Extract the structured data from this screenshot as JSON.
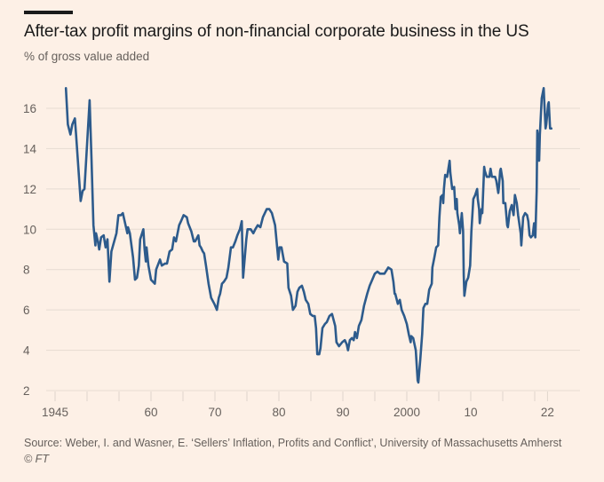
{
  "header": {
    "title": "After-tax profit margins of non-financial corporate business in the US",
    "subtitle": "% of gross value added"
  },
  "footer": {
    "source": "Source: Weber, I. and Wasner, E. ‘Sellers’ Inflation, Profits and Conflict’, University of Massachusetts Amherst",
    "copyright": "© FT"
  },
  "colors": {
    "background": "#fdf0e6",
    "line": "#2d5b8c",
    "grid": "#e6dbd2",
    "text": "#1a1a1a",
    "muted": "#66605c"
  },
  "chart_data": {
    "type": "line",
    "title": "After-tax profit margins of non-financial corporate business in the US",
    "subtitle": "% of gross value added",
    "xlabel": "",
    "ylabel": "% of gross value added",
    "xlim": [
      1945,
      2027
    ],
    "ylim": [
      2,
      17
    ],
    "grid": true,
    "legend": "none",
    "yticks": [
      2,
      4,
      6,
      8,
      10,
      12,
      14,
      16
    ],
    "xticks": [
      {
        "value": 1945,
        "label": "1945"
      },
      {
        "value": 1960,
        "label": "60"
      },
      {
        "value": 1970,
        "label": "70"
      },
      {
        "value": 1980,
        "label": "80"
      },
      {
        "value": 1990,
        "label": "90"
      },
      {
        "value": 2000,
        "label": "2000"
      },
      {
        "value": 2010,
        "label": "10"
      },
      {
        "value": 2022,
        "label": "22"
      }
    ],
    "minor_xticks": [
      1945,
      1950,
      1955,
      1960,
      1965,
      1970,
      1975,
      1980,
      1985,
      1990,
      1995,
      2000,
      2005,
      2010,
      2015,
      2020,
      2022
    ],
    "series": [
      {
        "name": "After-tax profit margin",
        "x": [
          1946.7,
          1947.0,
          1947.4,
          1947.7,
          1948.1,
          1948.3,
          1949.0,
          1949.3,
          1949.6,
          1950.0,
          1950.4,
          1950.7,
          1951.0,
          1951.3,
          1951.4,
          1951.7,
          1951.9,
          1952.2,
          1952.6,
          1952.9,
          1953.2,
          1953.5,
          1953.8,
          1954.6,
          1954.9,
          1955.3,
          1955.6,
          1955.8,
          1956.3,
          1956.4,
          1956.7,
          1956.9,
          1957.2,
          1957.5,
          1957.8,
          1958.1,
          1958.3,
          1958.8,
          1959.0,
          1959.2,
          1959.3,
          1959.6,
          1960.0,
          1960.6,
          1960.8,
          1961.4,
          1961.7,
          1962.2,
          1962.5,
          1962.9,
          1963.3,
          1963.6,
          1963.9,
          1964.4,
          1964.7,
          1965.1,
          1965.6,
          1965.8,
          1966.3,
          1966.7,
          1966.9,
          1967.4,
          1967.6,
          1967.8,
          1968.1,
          1968.3,
          1968.6,
          1969.0,
          1969.4,
          1969.9,
          1970.3,
          1970.6,
          1970.8,
          1971.1,
          1971.4,
          1971.8,
          1972.1,
          1972.5,
          1972.8,
          1973.2,
          1973.5,
          1973.9,
          1974.2,
          1974.4,
          1974.9,
          1975.1,
          1975.6,
          1976.0,
          1976.3,
          1976.7,
          1977.1,
          1977.5,
          1978.1,
          1978.5,
          1978.9,
          1979.4,
          1979.9,
          1980.1,
          1980.4,
          1980.8,
          1981.3,
          1981.5,
          1981.9,
          1982.2,
          1982.6,
          1982.9,
          1983.2,
          1983.6,
          1983.9,
          1984.2,
          1984.6,
          1984.9,
          1985.3,
          1985.6,
          1985.8,
          1986.0,
          1986.3,
          1986.5,
          1986.8,
          1987.2,
          1987.5,
          1987.9,
          1988.3,
          1988.8,
          1989.0,
          1989.4,
          1989.9,
          1990.3,
          1990.6,
          1990.8,
          1991.1,
          1991.4,
          1991.7,
          1991.9,
          1992.2,
          1992.5,
          1992.9,
          1993.3,
          1993.8,
          1994.2,
          1994.6,
          1995.0,
          1995.4,
          1995.8,
          1996.5,
          1997.1,
          1997.6,
          1997.9,
          1998.1,
          1998.2,
          1998.6,
          1998.9,
          1999.2,
          1999.6,
          2000.0,
          2000.3,
          2000.6,
          2000.7,
          2001.0,
          2001.4,
          2001.7,
          2001.8,
          2002.1,
          2002.4,
          2002.6,
          2002.9,
          2003.2,
          2003.5,
          2003.9,
          2004.0,
          2004.3,
          2004.6,
          2004.9,
          2005.1,
          2005.3,
          2005.6,
          2005.7,
          2005.8,
          2006.0,
          2006.3,
          2006.5,
          2006.7,
          2006.8,
          2007.1,
          2007.4,
          2007.5,
          2007.6,
          2007.8,
          2007.9,
          2008.2,
          2008.3,
          2008.6,
          2008.8,
          2008.9,
          2009.0,
          2009.3,
          2009.6,
          2009.9,
          2010.1,
          2010.4,
          2010.7,
          2011.0,
          2011.1,
          2011.3,
          2011.4,
          2011.7,
          2011.8,
          2012.1,
          2012.2,
          2012.5,
          2012.9,
          2013.1,
          2013.3,
          2013.8,
          2014.0,
          2014.3,
          2014.4,
          2014.6,
          2014.7,
          2015.0,
          2015.1,
          2015.4,
          2015.7,
          2015.8,
          2016.1,
          2016.4,
          2016.7,
          2016.9,
          2017.2,
          2017.4,
          2017.8,
          2017.9,
          2018.2,
          2018.5,
          2018.8,
          2019.0,
          2019.2,
          2019.4,
          2019.7,
          2019.9,
          2020.0,
          2020.1,
          2020.3,
          2020.4,
          2020.6,
          2020.7,
          2020.8,
          2021.1,
          2021.4,
          2021.5,
          2021.7,
          2021.8,
          2022.1,
          2022.2,
          2022.4,
          2022.6
        ],
        "y": [
          17.0,
          15.2,
          14.7,
          15.2,
          15.5,
          14.6,
          11.4,
          11.9,
          12.0,
          14.2,
          16.4,
          13.5,
          10.2,
          9.2,
          9.8,
          9.4,
          9.0,
          9.6,
          9.7,
          9.1,
          9.5,
          7.4,
          8.9,
          9.8,
          10.7,
          10.7,
          10.8,
          10.5,
          9.8,
          10.1,
          9.8,
          9.3,
          8.6,
          7.5,
          7.6,
          8.2,
          9.5,
          10.0,
          9.0,
          8.4,
          9.1,
          8.2,
          7.5,
          7.3,
          8.0,
          8.5,
          8.2,
          8.3,
          8.3,
          8.9,
          9.0,
          9.6,
          9.4,
          10.2,
          10.4,
          10.7,
          10.6,
          10.3,
          9.9,
          9.4,
          9.4,
          9.7,
          9.2,
          9.1,
          8.9,
          8.8,
          8.2,
          7.3,
          6.6,
          6.3,
          6.0,
          6.6,
          6.8,
          7.3,
          7.4,
          7.6,
          8.1,
          9.1,
          9.1,
          9.4,
          9.7,
          10.0,
          10.4,
          7.6,
          9.5,
          10.0,
          10.0,
          9.8,
          10.0,
          10.2,
          10.1,
          10.6,
          11.0,
          11.0,
          10.8,
          10.2,
          8.5,
          9.1,
          9.1,
          8.4,
          8.3,
          7.1,
          6.7,
          6.0,
          6.2,
          6.9,
          7.1,
          7.2,
          6.9,
          6.5,
          6.3,
          5.8,
          5.7,
          5.7,
          5.1,
          3.8,
          3.8,
          4.1,
          5.1,
          5.3,
          5.4,
          5.7,
          5.8,
          5.2,
          4.4,
          4.2,
          4.4,
          4.5,
          4.3,
          4.0,
          4.5,
          4.6,
          4.5,
          4.9,
          4.6,
          5.2,
          5.5,
          6.2,
          6.8,
          7.2,
          7.5,
          7.8,
          7.9,
          7.8,
          7.8,
          8.1,
          8.0,
          7.4,
          6.8,
          6.8,
          6.3,
          6.5,
          6.0,
          5.7,
          5.3,
          4.8,
          4.4,
          4.7,
          4.6,
          4.0,
          2.5,
          2.4,
          3.5,
          4.8,
          6.1,
          6.3,
          6.3,
          7.0,
          7.3,
          8.1,
          8.6,
          9.1,
          9.2,
          10.6,
          11.6,
          11.7,
          11.3,
          12.0,
          12.7,
          12.6,
          13.0,
          13.4,
          12.8,
          12.0,
          12.1,
          11.6,
          11.0,
          11.5,
          10.8,
          10.2,
          9.8,
          10.8,
          9.9,
          7.7,
          6.7,
          7.4,
          7.6,
          8.2,
          9.9,
          11.5,
          11.7,
          12.0,
          11.5,
          11.0,
          10.3,
          11.0,
          10.8,
          13.1,
          12.9,
          12.6,
          12.6,
          13.0,
          12.6,
          12.6,
          12.4,
          11.8,
          12.1,
          12.9,
          13.0,
          12.4,
          11.3,
          11.3,
          10.2,
          10.1,
          10.9,
          11.2,
          10.7,
          11.7,
          11.3,
          10.7,
          9.8,
          9.2,
          10.6,
          10.8,
          10.7,
          10.4,
          9.7,
          9.6,
          9.7,
          10.3,
          9.8,
          9.6,
          11.9,
          14.9,
          14.3,
          13.4,
          14.7,
          16.5,
          17.0,
          16.3,
          15.0,
          15.2,
          16.2,
          16.3,
          15.0,
          15.0
        ]
      }
    ]
  }
}
